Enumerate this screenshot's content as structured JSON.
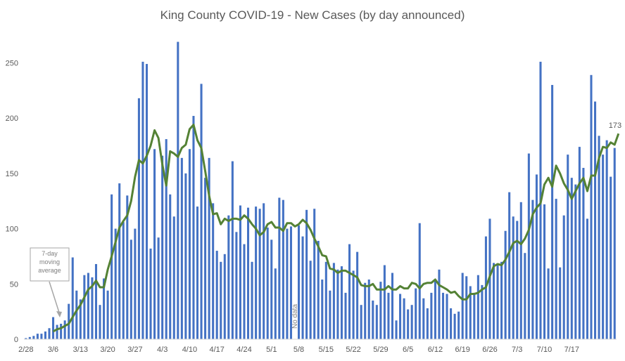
{
  "chart_data": {
    "type": "bar",
    "title": "King County COVID-19 - New Cases (by day announced)",
    "ylim": [
      0,
      270
    ],
    "yticks": [
      0,
      50,
      100,
      150,
      200,
      250
    ],
    "grid": false,
    "x_tick_labels": [
      "2/28",
      "3/6",
      "3/13",
      "3/20",
      "3/27",
      "4/3",
      "4/10",
      "4/17",
      "4/24",
      "5/1",
      "5/8",
      "5/15",
      "5/22",
      "5/29",
      "6/5",
      "6/12",
      "6/19",
      "6/26",
      "7/3",
      "7/10",
      "7/17"
    ],
    "colors": {
      "bars": "#4472c4",
      "line": "#548235",
      "text": "#595959",
      "axis": "#d9d9d9",
      "callout": "#a6a6a6"
    },
    "annotations": {
      "moving_average_callout": "7-day moving average",
      "no_data": "No data",
      "last_value": "173"
    },
    "series": [
      {
        "type": "bar",
        "values": [
          1,
          2,
          3,
          5,
          5,
          7,
          10,
          20,
          13,
          14,
          17,
          32,
          74,
          44,
          36,
          58,
          60,
          56,
          68,
          31,
          55,
          44,
          131,
          100,
          141,
          106,
          130,
          90,
          100,
          218,
          251,
          249,
          82,
          172,
          92,
          166,
          181,
          131,
          111,
          269,
          164,
          150,
          172,
          202,
          120,
          231,
          146,
          164,
          123,
          80,
          70,
          77,
          112,
          161,
          97,
          121,
          86,
          119,
          70,
          120,
          118,
          123,
          101,
          90,
          64,
          128,
          126,
          100,
          102,
          0,
          103,
          93,
          117,
          71,
          118,
          89,
          54,
          70,
          44,
          69,
          63,
          66,
          42,
          86,
          62,
          79,
          31,
          51,
          54,
          35,
          31,
          52,
          67,
          42,
          60,
          17,
          41,
          37,
          27,
          31,
          46,
          105,
          37,
          28,
          42,
          54,
          63,
          42,
          41,
          28,
          23,
          25,
          60,
          57,
          48,
          42,
          58,
          49,
          93,
          109,
          69,
          68,
          70,
          98,
          133,
          111,
          107,
          124,
          78,
          168,
          126,
          149,
          251,
          122,
          64,
          230,
          127,
          65,
          112,
          167,
          146,
          140,
          174,
          155,
          109,
          239,
          215,
          184,
          167,
          180,
          147,
          173
        ]
      },
      {
        "type": "line",
        "values": [
          null,
          null,
          null,
          null,
          null,
          null,
          null,
          7,
          9,
          10,
          12,
          14,
          20,
          26,
          31,
          38,
          45,
          48,
          53,
          47,
          47,
          63,
          75,
          88,
          101,
          107,
          112,
          125,
          147,
          162,
          159,
          166,
          175,
          189,
          182,
          158,
          139,
          170,
          168,
          165,
          173,
          176,
          190,
          194,
          180,
          173,
          152,
          130,
          113,
          114,
          104,
          109,
          107,
          109,
          109,
          108,
          112,
          109,
          104,
          100,
          94,
          97,
          104,
          106,
          101,
          101,
          98,
          105,
          105,
          102,
          104,
          108,
          105,
          99,
          91,
          84,
          76,
          75,
          64,
          63,
          60,
          62,
          62,
          60,
          58,
          56,
          49,
          48,
          48,
          50,
          45,
          45,
          45,
          48,
          45,
          45,
          48,
          46,
          46,
          51,
          50,
          46,
          50,
          51,
          51,
          54,
          49,
          47,
          45,
          42,
          43,
          39,
          36,
          36,
          41,
          41,
          42,
          45,
          47,
          57,
          66,
          68,
          67,
          72,
          79,
          87,
          89,
          86,
          91,
          99,
          113,
          119,
          123,
          140,
          146,
          138,
          157,
          150,
          141,
          135,
          127,
          134,
          141,
          146,
          134,
          148,
          148,
          164,
          174,
          173,
          178,
          176,
          186
        ],
        "end_label": "173"
      }
    ]
  }
}
